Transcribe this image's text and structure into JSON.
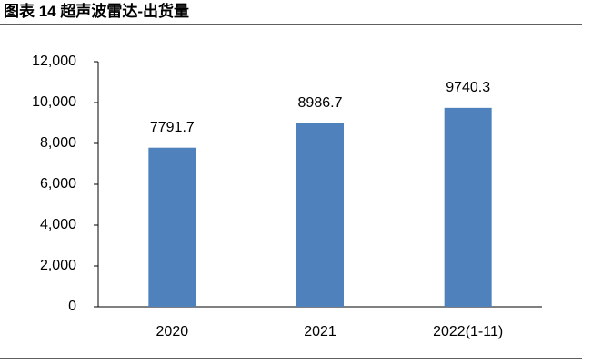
{
  "chart_data": {
    "type": "bar",
    "title": "图表 14 超声波雷达-出货量",
    "categories": [
      "2020",
      "2021",
      "2022(1-11)"
    ],
    "values": [
      7791.7,
      8986.7,
      9740.3
    ],
    "color": "#4f81bd",
    "ylim": [
      0,
      12000
    ],
    "yticks": [
      0,
      {
        "value": 2000,
        "label": "2,000"
      },
      {
        "value": 4000,
        "label": "4,000"
      },
      {
        "value": 6000,
        "label": "6,000"
      },
      {
        "value": 8000,
        "label": "8,000"
      },
      {
        "value": 10000,
        "label": "10,000"
      },
      {
        "value": 12000,
        "label": "12,000"
      }
    ],
    "grid": false
  }
}
